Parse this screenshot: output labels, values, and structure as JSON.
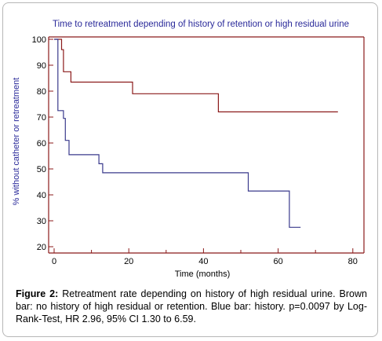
{
  "chart_data": {
    "type": "line",
    "step": true,
    "title": "Time to retreatment depending of history of retention or high residual urine",
    "xlabel": "Time (months)",
    "ylabel": "% without catheter or retreatment",
    "xlim": [
      0,
      80
    ],
    "ylim": [
      20,
      100
    ],
    "xticks": [
      0,
      20,
      40,
      60,
      80
    ],
    "yticks": [
      20,
      30,
      40,
      50,
      60,
      70,
      80,
      90,
      100
    ],
    "grid": false,
    "legend": "none",
    "series": [
      {
        "color": "#8b1a1a",
        "points": [
          [
            0,
            100
          ],
          [
            2,
            100
          ],
          [
            2,
            96
          ],
          [
            2.5,
            96
          ],
          [
            2.5,
            87.5
          ],
          [
            4.5,
            87.5
          ],
          [
            4.5,
            83.5
          ],
          [
            21,
            83.5
          ],
          [
            21,
            79
          ],
          [
            44,
            79
          ],
          [
            44,
            72
          ],
          [
            76,
            72
          ]
        ]
      },
      {
        "color": "#3a3a8c",
        "points": [
          [
            0,
            100
          ],
          [
            1,
            100
          ],
          [
            1,
            72.5
          ],
          [
            2.5,
            72.5
          ],
          [
            2.5,
            69.5
          ],
          [
            3,
            69.5
          ],
          [
            3,
            61
          ],
          [
            4,
            61
          ],
          [
            4,
            55.5
          ],
          [
            12,
            55.5
          ],
          [
            12,
            52
          ],
          [
            13,
            52
          ],
          [
            13,
            48.5
          ],
          [
            52,
            48.5
          ],
          [
            52,
            41.5
          ],
          [
            63,
            41.5
          ],
          [
            63,
            27.5
          ],
          [
            66,
            27.5
          ]
        ]
      }
    ]
  },
  "caption": {
    "label": "Figure 2:",
    "text": " Retreatment rate depending on history of high residual urine. Brown bar: no history of high residual or retention. Blue bar: history. p=0.0097 by Log-Rank-Test, HR 2.96, 95% CI 1.30 to 6.59."
  },
  "colors": {
    "axis": "#8b1a1a",
    "title": "#2a2a9a",
    "tick_label": "#000000",
    "ylabel": "#2a2a9a",
    "xlabel": "#000000"
  }
}
